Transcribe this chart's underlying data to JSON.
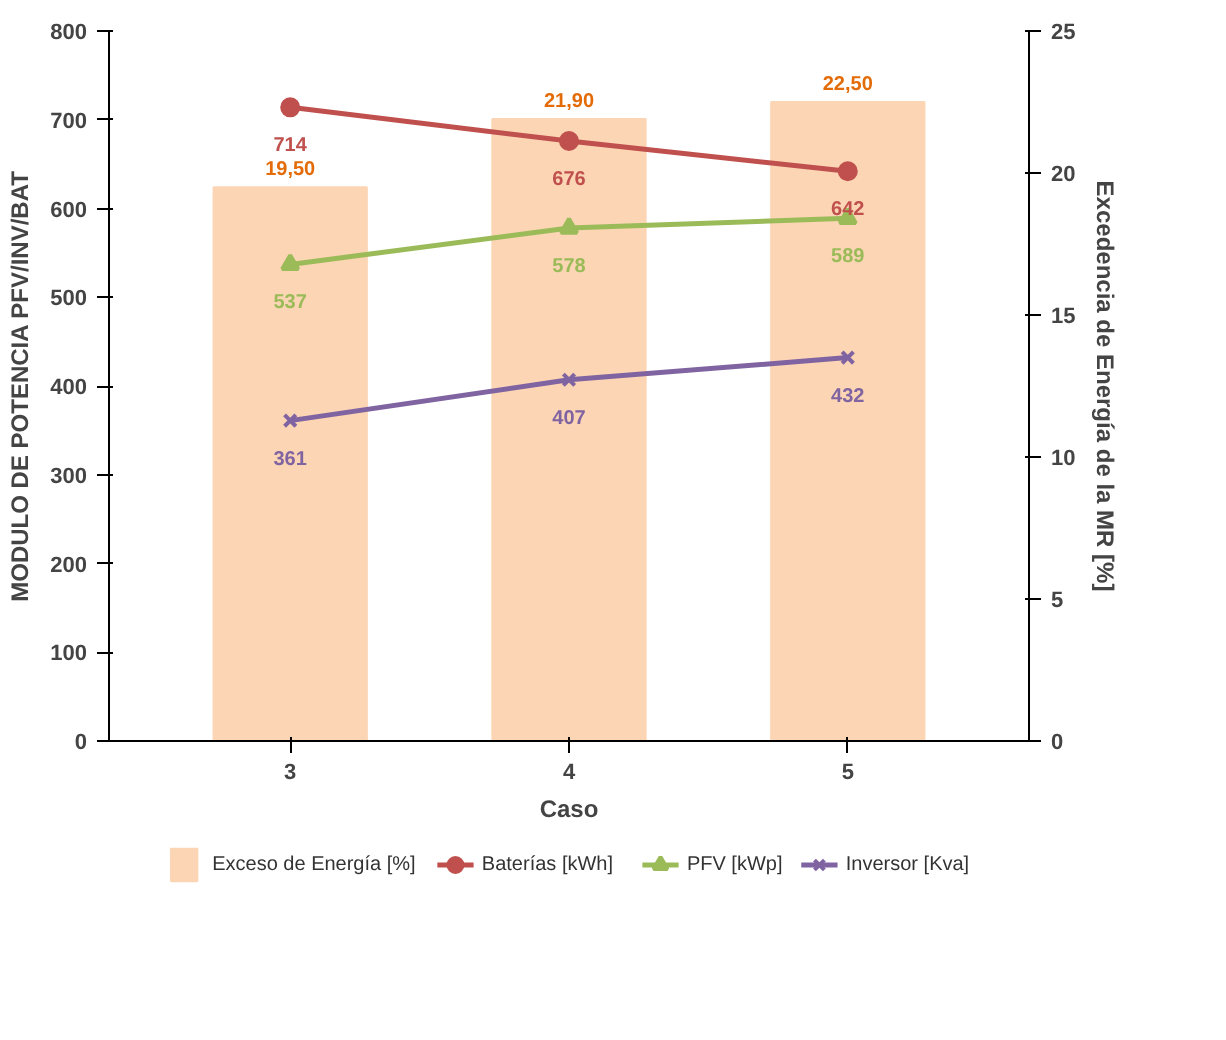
{
  "chart_data": {
    "type": "bar",
    "categories": [
      "3",
      "4",
      "5"
    ],
    "xlabel": "Caso",
    "ylabel": "MODULO DE POTENCIA PFV/INV/BAT",
    "y2label": "Excedencia de Energía de la MR [%]",
    "ylim": [
      0,
      800
    ],
    "yticks": [
      0,
      100,
      200,
      300,
      400,
      500,
      600,
      700,
      800
    ],
    "y2lim": [
      0,
      25
    ],
    "y2ticks": [
      0,
      5,
      10,
      15,
      20,
      25
    ],
    "legend": "bottom",
    "grid": false,
    "series": [
      {
        "name": "Exceso de Energía [%]",
        "axis": "y2",
        "color": "#fcd5b4",
        "values": [
          19.5,
          21.9,
          22.5
        ],
        "value_labels": [
          "19,50",
          "21,90",
          "22,50"
        ]
      },
      {
        "name": "Baterías [kWh]",
        "type": "line",
        "color": "#c0504d",
        "marker": "circle",
        "values": [
          714,
          676,
          642
        ],
        "value_labels": [
          "714",
          "676",
          "642"
        ]
      },
      {
        "name": "PFV [kWp]",
        "type": "line",
        "color": "#9bbb59",
        "marker": "triangle",
        "values": [
          537,
          578,
          589
        ],
        "value_labels": [
          "537",
          "578",
          "589"
        ]
      },
      {
        "name": "Inversor [Kva]",
        "type": "line",
        "color": "#8064a2",
        "marker": "cross",
        "values": [
          361,
          407,
          432
        ],
        "value_labels": [
          "361",
          "407",
          "432"
        ]
      }
    ]
  }
}
